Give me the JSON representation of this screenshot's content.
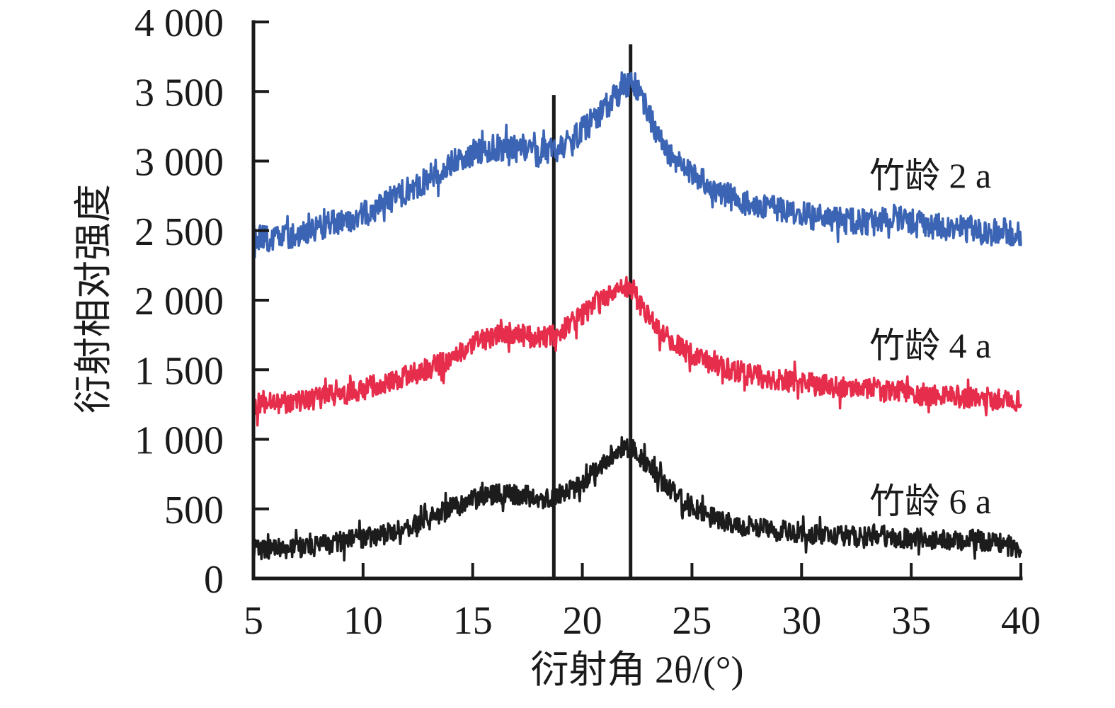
{
  "chart_data": {
    "type": "line",
    "title": "",
    "xlabel": "衍射角 2θ/(°)",
    "ylabel": "衍射相对强度",
    "xlim": [
      5,
      40
    ],
    "ylim": [
      0,
      4000
    ],
    "grid": false,
    "background": "#ffffff",
    "axis_color": "#1a1a1a",
    "legend_position": "labels-right-of-curves",
    "x_ticks": {
      "values": [
        5,
        10,
        15,
        20,
        25,
        30,
        35,
        40
      ],
      "labels": [
        "5",
        "10",
        "15",
        "20",
        "25",
        "30",
        "35",
        "40"
      ]
    },
    "y_ticks": {
      "values": [
        0,
        500,
        1000,
        1500,
        2000,
        2500,
        3000,
        3500,
        4000
      ],
      "labels": [
        "0",
        "500",
        "1 000",
        "1 500",
        "2 000",
        "2 500",
        "3 000",
        "3 500",
        "4 000"
      ]
    },
    "ref_lines": [
      {
        "x": 18.7,
        "y_from": 0,
        "y_to": 3475,
        "color": "#1a1a1a"
      },
      {
        "x": 22.2,
        "y_from": 0,
        "y_to": 3840,
        "color": "#1a1a1a"
      }
    ],
    "series": [
      {
        "name": "竹龄 2 a",
        "color": "#3B64B4",
        "noise_amplitude": 95,
        "anchors": [
          [
            5,
            2450
          ],
          [
            6,
            2430
          ],
          [
            7,
            2470
          ],
          [
            8,
            2520
          ],
          [
            9,
            2565
          ],
          [
            10,
            2620
          ],
          [
            11,
            2700
          ],
          [
            12,
            2785
          ],
          [
            13,
            2880
          ],
          [
            14,
            2985
          ],
          [
            15,
            3060
          ],
          [
            16,
            3100
          ],
          [
            17,
            3085
          ],
          [
            18,
            3055
          ],
          [
            18.7,
            3080
          ],
          [
            19.5,
            3150
          ],
          [
            20,
            3220
          ],
          [
            20.8,
            3340
          ],
          [
            21.5,
            3470
          ],
          [
            22.2,
            3570
          ],
          [
            22.6,
            3510
          ],
          [
            23,
            3340
          ],
          [
            23.5,
            3170
          ],
          [
            24,
            3040
          ],
          [
            25,
            2900
          ],
          [
            26,
            2800
          ],
          [
            27,
            2720
          ],
          [
            28,
            2675
          ],
          [
            29,
            2645
          ],
          [
            30,
            2615
          ],
          [
            31,
            2590
          ],
          [
            32,
            2570
          ],
          [
            33,
            2555
          ],
          [
            33.5,
            2560
          ],
          [
            34.3,
            2600
          ],
          [
            35,
            2560
          ],
          [
            36,
            2530
          ],
          [
            37,
            2515
          ],
          [
            38,
            2510
          ],
          [
            38.5,
            2470
          ],
          [
            39,
            2500
          ],
          [
            40,
            2480
          ]
        ]
      },
      {
        "name": "竹龄 4 a",
        "color": "#E62D4B",
        "noise_amplitude": 80,
        "anchors": [
          [
            5,
            1250
          ],
          [
            6,
            1255
          ],
          [
            7,
            1270
          ],
          [
            8,
            1295
          ],
          [
            9,
            1325
          ],
          [
            10,
            1360
          ],
          [
            11,
            1405
          ],
          [
            12,
            1450
          ],
          [
            13,
            1505
          ],
          [
            14,
            1580
          ],
          [
            15,
            1680
          ],
          [
            16,
            1750
          ],
          [
            17,
            1760
          ],
          [
            18,
            1725
          ],
          [
            18.7,
            1745
          ],
          [
            19.5,
            1830
          ],
          [
            20,
            1900
          ],
          [
            20.8,
            2000
          ],
          [
            21.4,
            2070
          ],
          [
            21.9,
            2105
          ],
          [
            22.4,
            2040
          ],
          [
            23,
            1880
          ],
          [
            23.7,
            1760
          ],
          [
            24.5,
            1660
          ],
          [
            25.5,
            1570
          ],
          [
            26.5,
            1510
          ],
          [
            27.5,
            1470
          ],
          [
            28.5,
            1440
          ],
          [
            29.5,
            1415
          ],
          [
            30.5,
            1395
          ],
          [
            31.5,
            1375
          ],
          [
            32.5,
            1360
          ],
          [
            33.5,
            1350
          ],
          [
            34.5,
            1340
          ],
          [
            35.5,
            1325
          ],
          [
            36.5,
            1310
          ],
          [
            37.5,
            1305
          ],
          [
            38.5,
            1295
          ],
          [
            39.2,
            1280
          ],
          [
            40,
            1270
          ]
        ]
      },
      {
        "name": "竹龄 6 a",
        "color": "#1C1C1C",
        "noise_amplitude": 75,
        "anchors": [
          [
            5,
            200
          ],
          [
            6,
            210
          ],
          [
            7,
            220
          ],
          [
            8,
            235
          ],
          [
            9,
            260
          ],
          [
            10,
            290
          ],
          [
            11,
            320
          ],
          [
            12,
            360
          ],
          [
            13,
            425
          ],
          [
            14,
            505
          ],
          [
            15,
            565
          ],
          [
            15.6,
            600
          ],
          [
            16.5,
            610
          ],
          [
            17.5,
            590
          ],
          [
            18.3,
            578
          ],
          [
            19,
            600
          ],
          [
            19.8,
            660
          ],
          [
            20.6,
            770
          ],
          [
            21.3,
            880
          ],
          [
            21.8,
            950
          ],
          [
            22.3,
            925
          ],
          [
            23,
            810
          ],
          [
            23.8,
            665
          ],
          [
            24.6,
            555
          ],
          [
            25.5,
            465
          ],
          [
            26.5,
            405
          ],
          [
            27.5,
            375
          ],
          [
            28.5,
            350
          ],
          [
            29.5,
            335
          ],
          [
            30.5,
            322
          ],
          [
            31.5,
            310
          ],
          [
            32.5,
            308
          ],
          [
            33.3,
            318
          ],
          [
            34,
            300
          ],
          [
            35,
            290
          ],
          [
            36,
            280
          ],
          [
            37,
            268
          ],
          [
            38,
            278
          ],
          [
            39,
            250
          ],
          [
            40,
            220
          ]
        ]
      }
    ]
  }
}
